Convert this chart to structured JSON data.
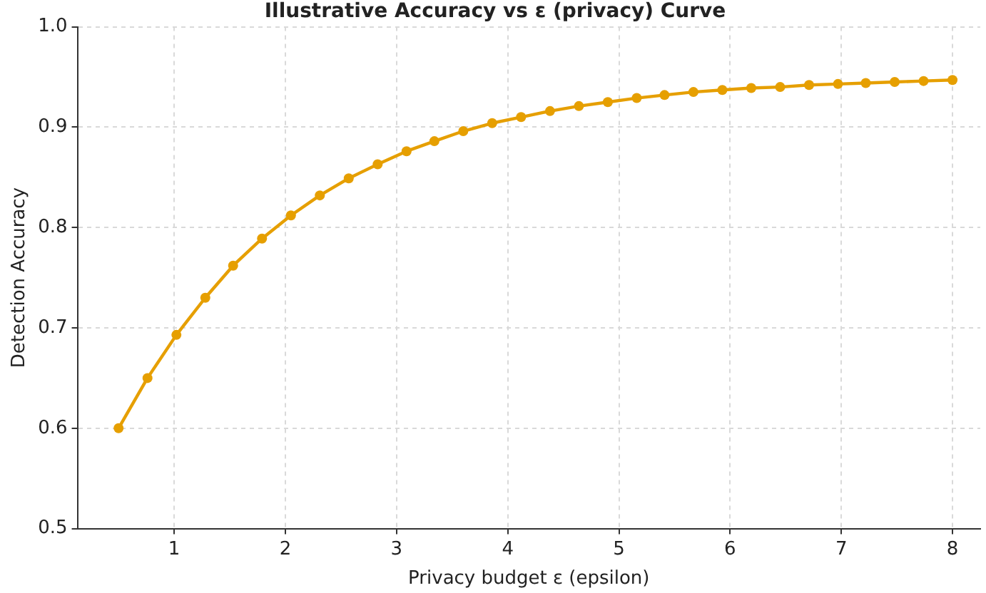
{
  "chart_data": {
    "type": "line",
    "title": "Illustrative Accuracy vs ε (privacy) Curve",
    "xlabel": "Privacy budget ε (epsilon)",
    "ylabel": "Detection Accuracy",
    "x": [
      0.5,
      0.76,
      1.02,
      1.28,
      1.53,
      1.79,
      2.05,
      2.31,
      2.57,
      2.83,
      3.09,
      3.34,
      3.6,
      3.86,
      4.12,
      4.38,
      4.64,
      4.9,
      5.16,
      5.41,
      5.67,
      5.93,
      6.19,
      6.45,
      6.71,
      6.97,
      7.22,
      7.48,
      7.74,
      8.0
    ],
    "series": [
      {
        "color": "#e69f00",
        "values": [
          0.6,
          0.65,
          0.693,
          0.73,
          0.762,
          0.789,
          0.812,
          0.832,
          0.849,
          0.863,
          0.876,
          0.886,
          0.896,
          0.904,
          0.91,
          0.916,
          0.921,
          0.925,
          0.929,
          0.932,
          0.935,
          0.937,
          0.939,
          0.94,
          0.942,
          0.943,
          0.944,
          0.945,
          0.946,
          0.947
        ]
      }
    ],
    "xlim": [
      0.13,
      8.25
    ],
    "ylim": [
      0.5,
      1.0
    ],
    "xticks": [
      1,
      2,
      3,
      4,
      5,
      6,
      7,
      8
    ],
    "yticks": [
      {
        "value": 0.5,
        "label": "0.5"
      },
      {
        "value": 0.6,
        "label": "0.6"
      },
      {
        "value": 0.7,
        "label": "0.7"
      },
      {
        "value": 0.8,
        "label": "0.8"
      },
      {
        "value": 0.9,
        "label": "0.9"
      },
      {
        "value": 1.0,
        "label": "1.0"
      }
    ],
    "grid": true,
    "legend": false,
    "marker": "circle",
    "line_style": "solid"
  }
}
